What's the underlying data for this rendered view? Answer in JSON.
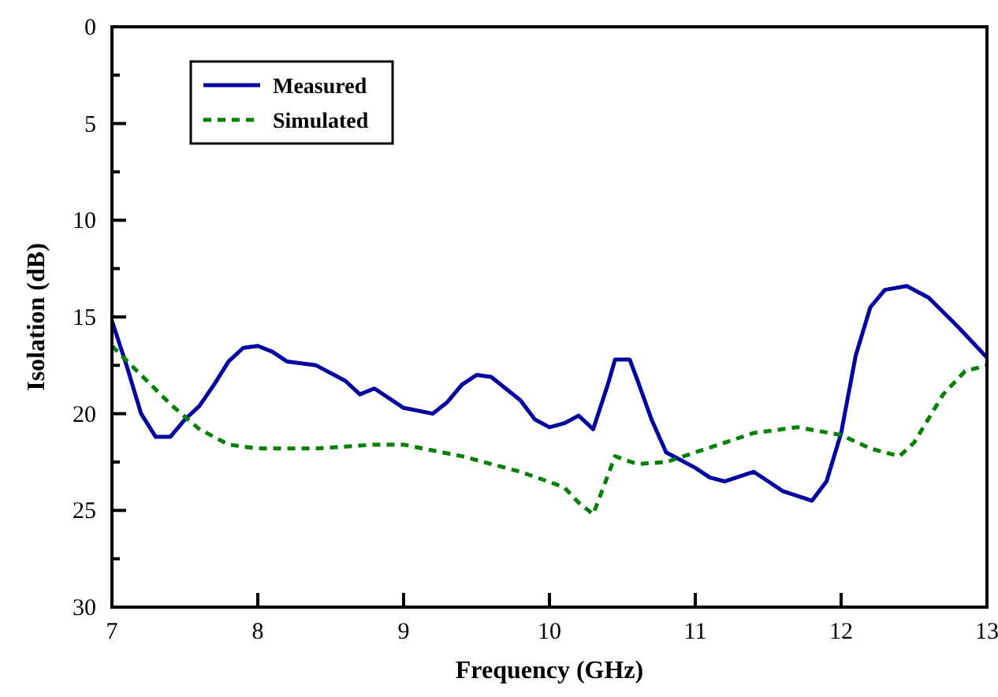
{
  "chart_data": {
    "type": "line",
    "xlabel": "Frequency (GHz)",
    "ylabel": "Isolation (dB)",
    "xlim": [
      7,
      13
    ],
    "ylim": [
      30,
      0
    ],
    "xticks": [
      7,
      8,
      9,
      10,
      11,
      12,
      13
    ],
    "yticks": [
      0,
      {
        "value": 2.5,
        "label": null
      },
      5,
      {
        "value": 7.5,
        "label": null
      },
      10,
      {
        "value": 12.5,
        "label": null
      },
      15,
      {
        "value": 17.5,
        "label": null
      },
      20,
      {
        "value": 22.5,
        "label": null
      },
      25,
      {
        "value": 27.5,
        "label": null
      },
      30
    ],
    "grid": false,
    "legend": "top left",
    "series": [
      {
        "name": "Measured",
        "color": "#0000a0",
        "line_style": "solid",
        "x": [
          7,
          7.1,
          7.2,
          7.3,
          7.4,
          7.5,
          7.6,
          7.7,
          7.8,
          7.9,
          8,
          8.1,
          8.2,
          8.4,
          8.6,
          8.7,
          8.8,
          9,
          9.2,
          9.3,
          9.4,
          9.5,
          9.6,
          9.8,
          9.9,
          10,
          10.1,
          10.2,
          10.3,
          10.4,
          10.45,
          10.55,
          10.6,
          10.7,
          10.8,
          10.9,
          11,
          11.1,
          11.2,
          11.4,
          11.5,
          11.6,
          11.8,
          11.9,
          12,
          12.1,
          12.2,
          12.3,
          12.45,
          12.6,
          12.8,
          13
        ],
        "values": [
          15.2,
          17.5,
          20,
          21.2,
          21.2,
          20.3,
          19.6,
          18.5,
          17.3,
          16.6,
          16.5,
          16.8,
          17.3,
          17.5,
          18.3,
          19,
          18.7,
          19.7,
          20,
          19.4,
          18.5,
          18,
          18.1,
          19.3,
          20.3,
          20.7,
          20.5,
          20.1,
          20.8,
          18.5,
          17.2,
          17.2,
          18.2,
          20.3,
          22,
          22.4,
          22.8,
          23.3,
          23.5,
          23,
          23.5,
          24,
          24.5,
          23.5,
          21,
          17,
          14.5,
          13.6,
          13.4,
          14,
          15.5,
          17.1
        ]
      },
      {
        "name": "Simulated",
        "color": "#008000",
        "line_style": "dashed",
        "x": [
          7,
          7.2,
          7.4,
          7.6,
          7.8,
          8,
          8.4,
          8.8,
          9,
          9.4,
          9.8,
          10.1,
          10.2,
          10.3,
          10.35,
          10.45,
          10.6,
          10.8,
          11,
          11.4,
          11.7,
          12,
          12.2,
          12.4,
          12.5,
          12.7,
          12.85,
          13
        ],
        "values": [
          16.5,
          18,
          19.5,
          20.8,
          21.6,
          21.8,
          21.8,
          21.6,
          21.6,
          22.2,
          23,
          23.8,
          24.6,
          25.2,
          24.2,
          22.2,
          22.6,
          22.5,
          22,
          21,
          20.7,
          21.1,
          21.8,
          22.2,
          21.5,
          19,
          17.8,
          17.5
        ]
      }
    ]
  }
}
